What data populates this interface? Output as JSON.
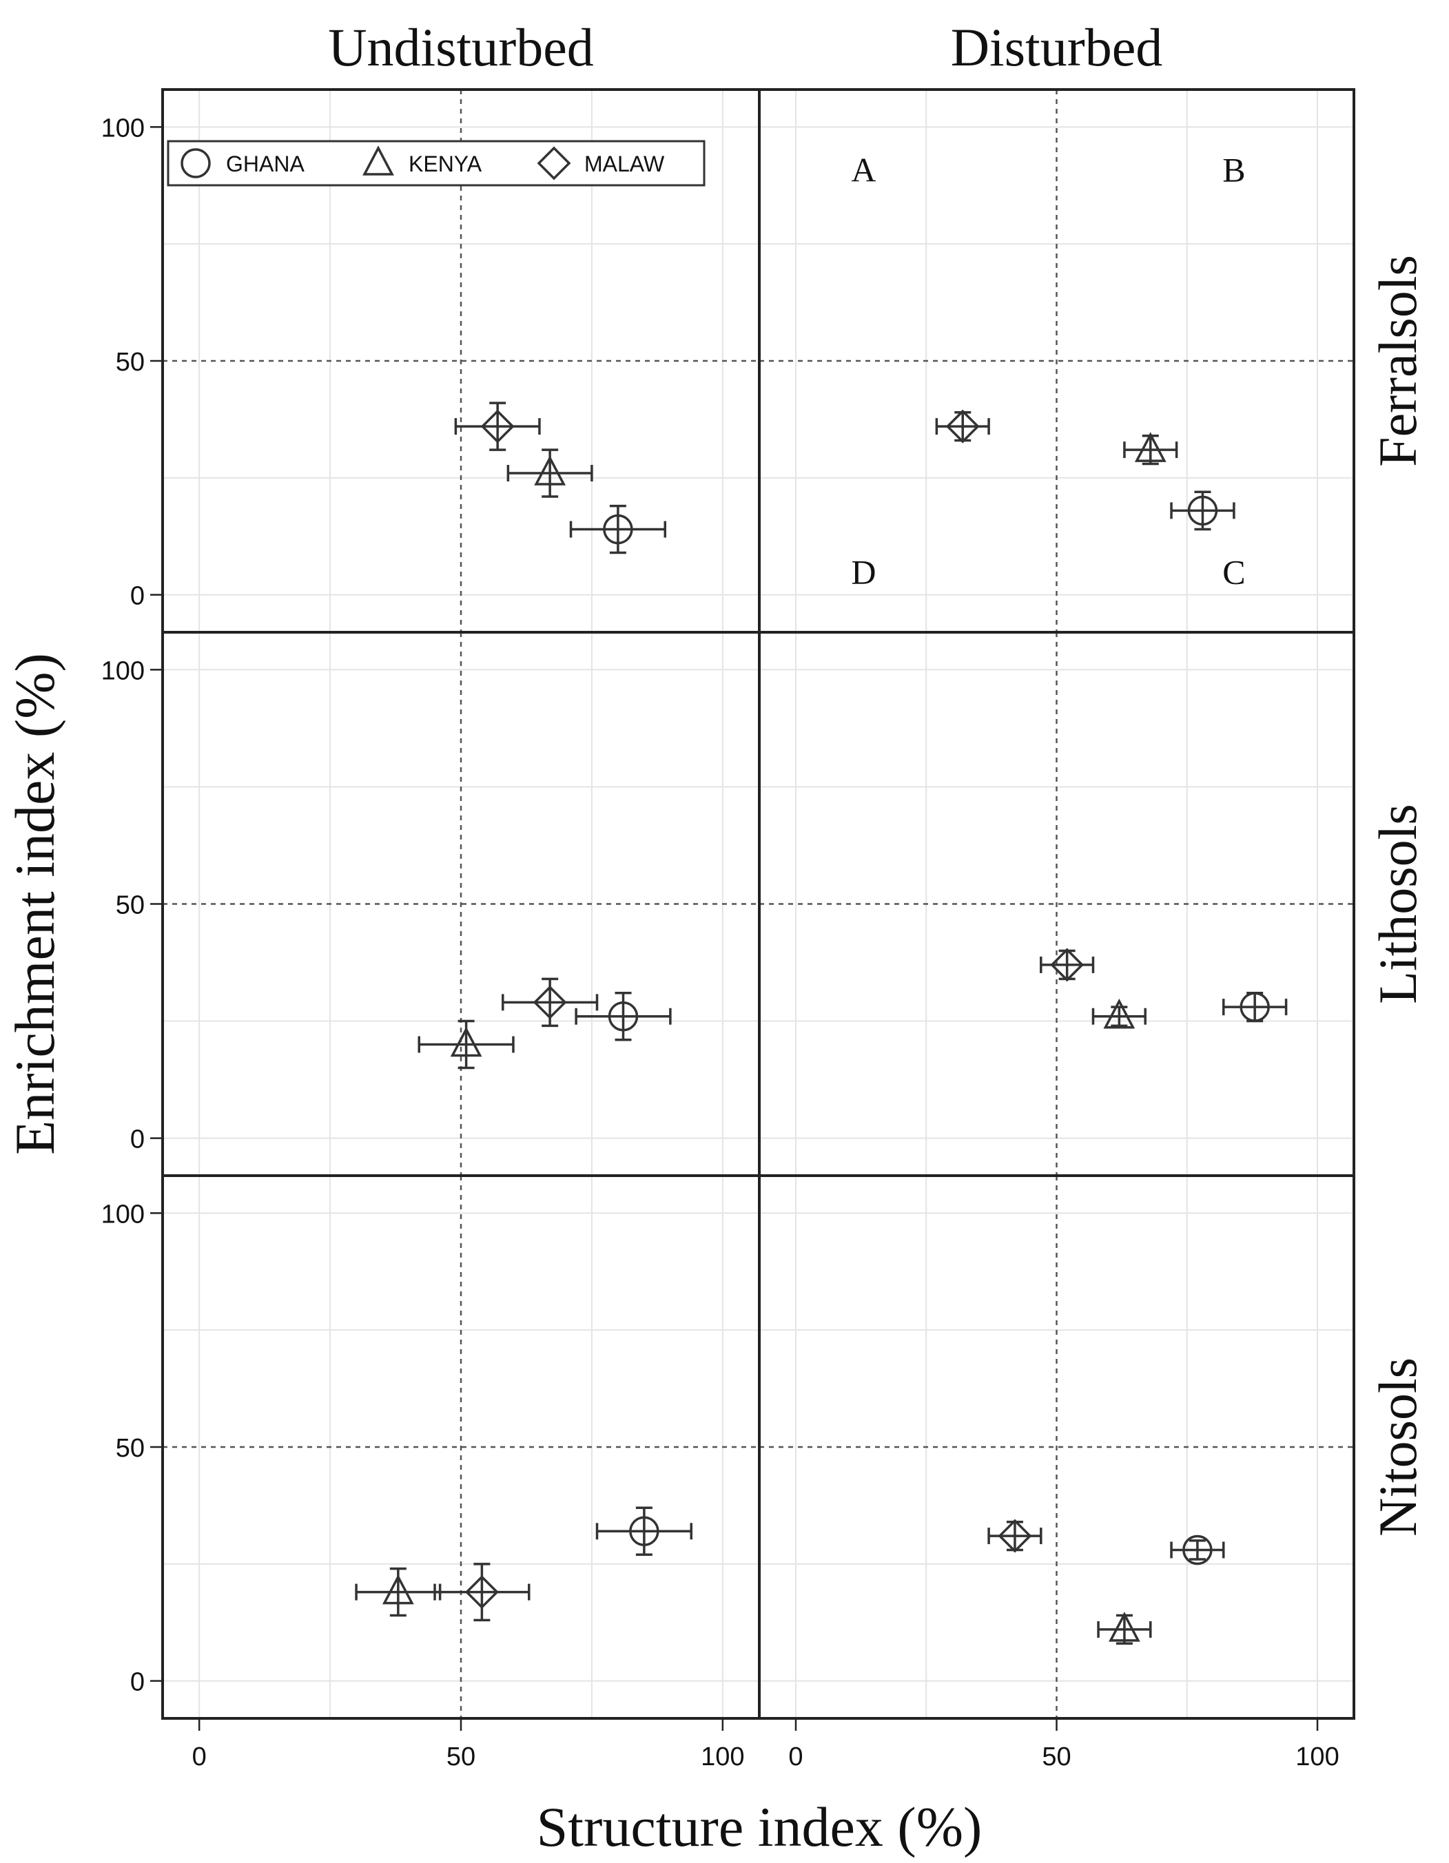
{
  "chart_data": {
    "type": "scatter",
    "column_headers": [
      "Undisturbed",
      "Disturbed"
    ],
    "row_headers": [
      "Ferralsols",
      "Lithosols",
      "Nitosols"
    ],
    "xlabel": "Structure index (%)",
    "ylabel": "Enrichment index (%)",
    "xlim": [
      -7,
      107
    ],
    "ylim": [
      -8,
      108
    ],
    "xticks": [
      "0",
      "50",
      "100"
    ],
    "yticks": [
      "0",
      "50",
      "100"
    ],
    "reference_lines": {
      "x": 50,
      "y": 50,
      "style": "dashed"
    },
    "grid": true,
    "legend": {
      "placement": "top-left of first panel",
      "entries": [
        {
          "name": "GHANA",
          "marker": "circle"
        },
        {
          "name": "KENYA",
          "marker": "triangle"
        },
        {
          "name": "MALAW",
          "marker": "diamond"
        }
      ]
    },
    "quadrant_labels": [
      {
        "text": "A",
        "x": 13,
        "y": 91
      },
      {
        "text": "B",
        "x": 84,
        "y": 91
      },
      {
        "text": "C",
        "x": 84,
        "y": 5
      },
      {
        "text": "D",
        "x": 13,
        "y": 5
      }
    ],
    "panels": [
      {
        "column": "Undisturbed",
        "row": "Ferralsols",
        "series": [
          {
            "name": "GHANA",
            "points": [
              {
                "x": 80,
                "y": 14,
                "xerr": 9,
                "yerr": 5
              }
            ]
          },
          {
            "name": "KENYA",
            "points": [
              {
                "x": 67,
                "y": 26,
                "xerr": 8,
                "yerr": 5
              }
            ]
          },
          {
            "name": "MALAW",
            "points": [
              {
                "x": 57,
                "y": 36,
                "xerr": 8,
                "yerr": 5
              }
            ]
          }
        ]
      },
      {
        "column": "Disturbed",
        "row": "Ferralsols",
        "series": [
          {
            "name": "GHANA",
            "points": [
              {
                "x": 78,
                "y": 18,
                "xerr": 6,
                "yerr": 4
              }
            ]
          },
          {
            "name": "KENYA",
            "points": [
              {
                "x": 68,
                "y": 31,
                "xerr": 5,
                "yerr": 3
              }
            ]
          },
          {
            "name": "MALAW",
            "points": [
              {
                "x": 32,
                "y": 36,
                "xerr": 5,
                "yerr": 3
              }
            ]
          }
        ]
      },
      {
        "column": "Undisturbed",
        "row": "Lithosols",
        "series": [
          {
            "name": "GHANA",
            "points": [
              {
                "x": 81,
                "y": 26,
                "xerr": 9,
                "yerr": 5
              }
            ]
          },
          {
            "name": "KENYA",
            "points": [
              {
                "x": 51,
                "y": 20,
                "xerr": 9,
                "yerr": 5
              }
            ]
          },
          {
            "name": "MALAW",
            "points": [
              {
                "x": 67,
                "y": 29,
                "xerr": 9,
                "yerr": 5
              }
            ]
          }
        ]
      },
      {
        "column": "Disturbed",
        "row": "Lithosols",
        "series": [
          {
            "name": "GHANA",
            "points": [
              {
                "x": 88,
                "y": 28,
                "xerr": 6,
                "yerr": 3
              }
            ]
          },
          {
            "name": "KENYA",
            "points": [
              {
                "x": 62,
                "y": 26,
                "xerr": 5,
                "yerr": 2
              }
            ]
          },
          {
            "name": "MALAW",
            "points": [
              {
                "x": 52,
                "y": 37,
                "xerr": 5,
                "yerr": 3
              }
            ]
          }
        ]
      },
      {
        "column": "Undisturbed",
        "row": "Nitosols",
        "series": [
          {
            "name": "GHANA",
            "points": [
              {
                "x": 85,
                "y": 32,
                "xerr": 9,
                "yerr": 5
              }
            ]
          },
          {
            "name": "KENYA",
            "points": [
              {
                "x": 38,
                "y": 19,
                "xerr": 8,
                "yerr": 5
              }
            ]
          },
          {
            "name": "MALAW",
            "points": [
              {
                "x": 54,
                "y": 19,
                "xerr": 9,
                "yerr": 6
              }
            ]
          }
        ]
      },
      {
        "column": "Disturbed",
        "row": "Nitosols",
        "series": [
          {
            "name": "GHANA",
            "points": [
              {
                "x": 77,
                "y": 28,
                "xerr": 5,
                "yerr": 2
              }
            ]
          },
          {
            "name": "KENYA",
            "points": [
              {
                "x": 63,
                "y": 11,
                "xerr": 5,
                "yerr": 3
              }
            ]
          },
          {
            "name": "MALAW",
            "points": [
              {
                "x": 42,
                "y": 31,
                "xerr": 5,
                "yerr": 3
              }
            ]
          }
        ]
      }
    ]
  }
}
